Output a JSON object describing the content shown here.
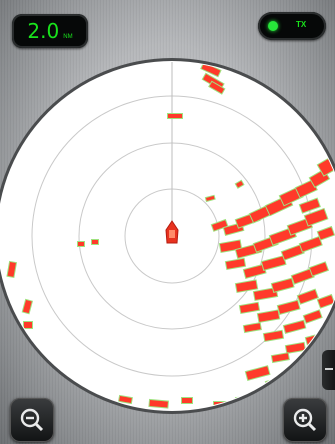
{
  "range": {
    "value": "2.0",
    "unit": "NM"
  },
  "transmit": {
    "label": "TX",
    "status_color": "#27e63a"
  },
  "icons": {
    "zoom_out": "zoom-out-magnifier-icon",
    "zoom_in": "zoom-in-magnifier-icon",
    "vessel": "own-boat-icon",
    "side_handle": "panel-handle-icon"
  },
  "colors": {
    "display_accent": "#19e21c",
    "echo_strong": "#ff3a2a",
    "echo_weak": "#9fe27f",
    "radar_background": "#ffffff"
  }
}
